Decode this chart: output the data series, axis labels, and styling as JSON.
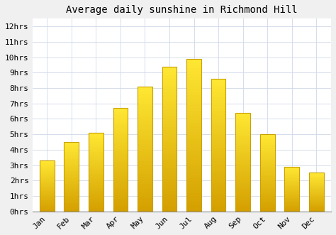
{
  "title": "Average daily sunshine in Richmond Hill",
  "months": [
    "Jan",
    "Feb",
    "Mar",
    "Apr",
    "May",
    "Jun",
    "Jul",
    "Aug",
    "Sep",
    "Oct",
    "Nov",
    "Dec"
  ],
  "values": [
    3.3,
    4.5,
    5.1,
    6.7,
    8.1,
    9.4,
    9.9,
    8.6,
    6.4,
    5.0,
    2.9,
    2.5
  ],
  "bar_color_top": "#FFE033",
  "bar_color_bottom": "#D4A000",
  "bar_edge_color": "#C8A000",
  "ytick_labels": [
    "0hrs",
    "1hrs",
    "2hrs",
    "3hrs",
    "4hrs",
    "5hrs",
    "6hrs",
    "7hrs",
    "8hrs",
    "9hrs",
    "10hrs",
    "11hrs",
    "12hrs"
  ],
  "ytick_values": [
    0,
    1,
    2,
    3,
    4,
    5,
    6,
    7,
    8,
    9,
    10,
    11,
    12
  ],
  "ylim": [
    0,
    12.5
  ],
  "background_color": "#f0f0f0",
  "plot_bg_color": "#ffffff",
  "grid_color": "#d0d8e8",
  "title_fontsize": 10,
  "tick_fontsize": 8,
  "font_family": "monospace",
  "bar_width": 0.6
}
